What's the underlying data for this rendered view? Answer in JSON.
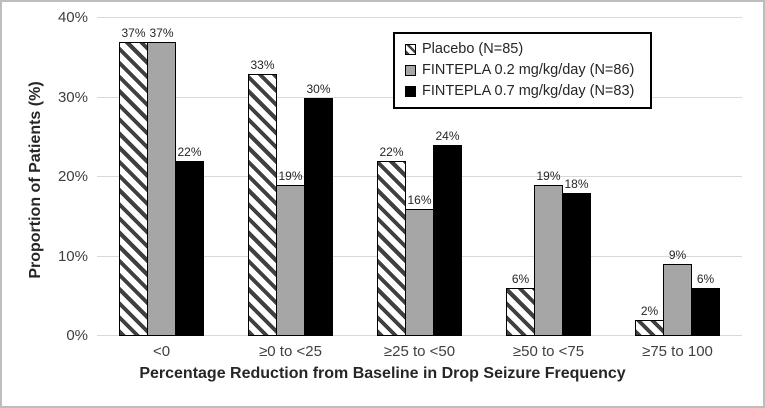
{
  "chart_data": {
    "type": "bar",
    "title": "",
    "xlabel": "Percentage Reduction from Baseline in Drop Seizure Frequency",
    "ylabel": "Proportion of Patients (%)",
    "ylim": [
      0,
      40
    ],
    "yticks": [
      0,
      10,
      20,
      30,
      40
    ],
    "ytick_format": "{v}%",
    "data_label_format": "{v}%",
    "grid": true,
    "legend_position": "top-right",
    "categories": [
      "<0",
      "≥0 to <25",
      "≥25 to <50",
      "≥50 to <75",
      "≥75 to 100"
    ],
    "series": [
      {
        "name": "Placebo (N=85)",
        "values": [
          37,
          33,
          22,
          6,
          2
        ],
        "fill": "hatch",
        "colors": {
          "background": "#ffffff",
          "stripe": "#404040",
          "border": "#000000"
        }
      },
      {
        "name": "FINTEPLA 0.2 mg/kg/day (N=86)",
        "values": [
          37,
          19,
          16,
          19,
          9
        ],
        "fill": "solid",
        "colors": {
          "background": "#a6a6a6",
          "border": "#000000"
        }
      },
      {
        "name": "FINTEPLA 0.7 mg/kg/day (N=83)",
        "values": [
          22,
          30,
          24,
          18,
          6
        ],
        "fill": "solid",
        "colors": {
          "background": "#000000",
          "border": "#000000"
        }
      }
    ],
    "colors": {
      "gridline": "#d9d9d9",
      "axis_line": "#d9d9d9",
      "tick_text": "#404040",
      "title_text": "#262626",
      "frame_border": "#bdbdbd",
      "legend_border": "#000000"
    }
  }
}
